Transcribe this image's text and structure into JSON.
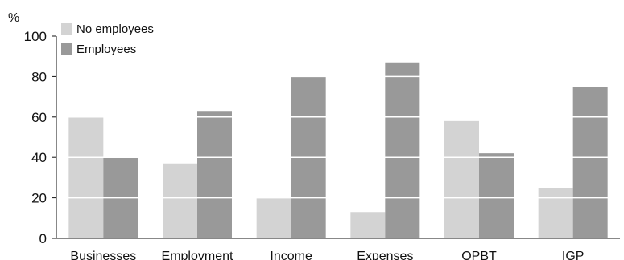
{
  "chart_data": {
    "type": "bar",
    "categories": [
      "Businesses",
      "Employment",
      "Income",
      "Expenses",
      "OPBT",
      "IGP"
    ],
    "series": [
      {
        "name": "No employees",
        "color": "#d3d3d3",
        "values": [
          60,
          37,
          20,
          13,
          58,
          25
        ]
      },
      {
        "name": "Employees",
        "color": "#999999",
        "values": [
          40,
          63,
          80,
          87,
          42,
          75
        ]
      }
    ],
    "ylabel": "%",
    "xlabel": "",
    "ylim": [
      0,
      100
    ],
    "yticks": [
      0,
      20,
      40,
      60,
      80,
      100
    ],
    "grid": "white horizontal lines drawn over bars at major ticks",
    "legend": "top-left"
  }
}
